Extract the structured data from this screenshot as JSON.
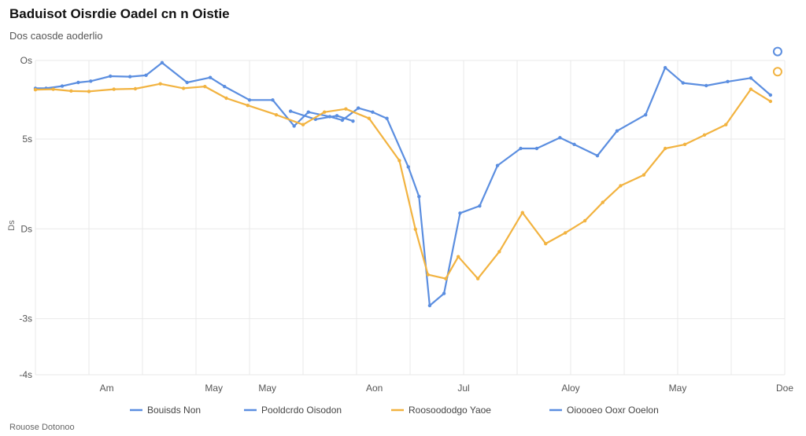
{
  "header": {
    "title": "Baduisot Oisrdie Oadel cn n Oistie",
    "subtitle": "Dos caosde aoderlio"
  },
  "footer": {
    "note": "Rouose Dotonoo"
  },
  "colors": {
    "blue": "#5b8ee0",
    "orange": "#f2b340",
    "grid": "#e9e9e9"
  },
  "chart_data": {
    "type": "line",
    "title": "Baduisot Oisrdie Oadel cn n Oistie",
    "subtitle": "Dos caosde aoderlio",
    "ylabel": "Ds",
    "ylim": [
      -6,
      1
    ],
    "y_ticks": [
      {
        "value": 1,
        "label": "Os"
      },
      {
        "value": -0.75,
        "label": "5s"
      },
      {
        "value": -2.75,
        "label": "Ds"
      },
      {
        "value": -4.75,
        "label": "-3s"
      },
      {
        "value": -6,
        "label": "-4s"
      }
    ],
    "x_ticks": [
      {
        "x": 4,
        "label": "Am"
      },
      {
        "x": 10,
        "label": "May"
      },
      {
        "x": 13,
        "label": "May"
      },
      {
        "x": 19,
        "label": "Aon"
      },
      {
        "x": 24,
        "label": "Jul"
      },
      {
        "x": 30,
        "label": "Aloy"
      },
      {
        "x": 36,
        "label": "May"
      },
      {
        "x": 42,
        "label": "Doe"
      }
    ],
    "xlim": [
      0,
      42
    ],
    "grid": true,
    "legend_position": "bottom",
    "series": [
      {
        "name": "Bouisds Non",
        "color": "#5b8ee0",
        "points": [
          [
            0,
            0.38
          ],
          [
            0.6,
            0.38
          ],
          [
            1.5,
            0.43
          ],
          [
            2.4,
            0.51
          ],
          [
            3.1,
            0.54
          ],
          [
            4.2,
            0.65
          ],
          [
            5.3,
            0.64
          ],
          [
            6.2,
            0.67
          ],
          [
            7.1,
            0.95
          ],
          [
            8.5,
            0.51
          ],
          [
            9.8,
            0.62
          ],
          [
            10.6,
            0.42
          ],
          [
            12.0,
            0.12
          ],
          [
            13.3,
            0.12
          ],
          [
            14.5,
            -0.46
          ],
          [
            15.3,
            -0.15
          ],
          [
            16.5,
            -0.25
          ],
          [
            17.2,
            -0.33
          ],
          [
            18.1,
            -0.06
          ],
          [
            18.9,
            -0.15
          ],
          [
            19.7,
            -0.29
          ],
          [
            20.9,
            -1.37
          ],
          [
            21.5,
            -2.03
          ],
          [
            22.1,
            -4.46
          ],
          [
            22.9,
            -4.19
          ],
          [
            23.8,
            -2.4
          ],
          [
            24.9,
            -2.24
          ],
          [
            25.9,
            -1.34
          ],
          [
            27.2,
            -0.96
          ],
          [
            28.1,
            -0.96
          ],
          [
            29.4,
            -0.72
          ],
          [
            30.2,
            -0.87
          ],
          [
            31.5,
            -1.12
          ],
          [
            32.6,
            -0.57
          ],
          [
            34.2,
            -0.21
          ],
          [
            35.3,
            0.84
          ],
          [
            36.3,
            0.5
          ],
          [
            37.6,
            0.44
          ],
          [
            38.8,
            0.53
          ],
          [
            40.1,
            0.61
          ],
          [
            41.2,
            0.23
          ]
        ]
      },
      {
        "name": "Pooldcrdo Oisodon",
        "color": "#5b8ee0",
        "points": [
          [
            14.3,
            -0.13
          ],
          [
            15.7,
            -0.31
          ],
          [
            16.9,
            -0.23
          ],
          [
            17.8,
            -0.35
          ]
        ]
      },
      {
        "name": "Roosoododgo Yaoe",
        "color": "#f2b340",
        "points": [
          [
            0,
            0.35
          ],
          [
            1.0,
            0.36
          ],
          [
            2.0,
            0.32
          ],
          [
            3.0,
            0.31
          ],
          [
            4.4,
            0.36
          ],
          [
            5.6,
            0.37
          ],
          [
            7.0,
            0.48
          ],
          [
            8.3,
            0.38
          ],
          [
            9.5,
            0.42
          ],
          [
            10.7,
            0.16
          ],
          [
            11.9,
            0.0
          ],
          [
            13.5,
            -0.21
          ],
          [
            15.0,
            -0.43
          ],
          [
            16.2,
            -0.15
          ],
          [
            17.4,
            -0.08
          ],
          [
            18.7,
            -0.29
          ],
          [
            20.4,
            -1.23
          ],
          [
            21.3,
            -2.76
          ],
          [
            22.0,
            -3.77
          ],
          [
            23.0,
            -3.86
          ],
          [
            23.7,
            -3.37
          ],
          [
            24.8,
            -3.86
          ],
          [
            26.0,
            -3.26
          ],
          [
            27.3,
            -2.39
          ],
          [
            28.6,
            -3.08
          ],
          [
            29.7,
            -2.84
          ],
          [
            30.8,
            -2.57
          ],
          [
            31.8,
            -2.16
          ],
          [
            32.8,
            -1.79
          ],
          [
            34.1,
            -1.55
          ],
          [
            35.3,
            -0.96
          ],
          [
            36.4,
            -0.87
          ],
          [
            37.5,
            -0.66
          ],
          [
            38.7,
            -0.43
          ],
          [
            40.1,
            0.36
          ],
          [
            41.2,
            0.09
          ]
        ]
      },
      {
        "name": "Oioooeo Ooxr Ooelon",
        "color": "#5b8ee0",
        "points": []
      }
    ],
    "end_markers": [
      {
        "series_index": 0,
        "x": 41.6,
        "y": 1.2
      },
      {
        "series_index": 2,
        "x": 41.6,
        "y": 0.75
      }
    ]
  }
}
